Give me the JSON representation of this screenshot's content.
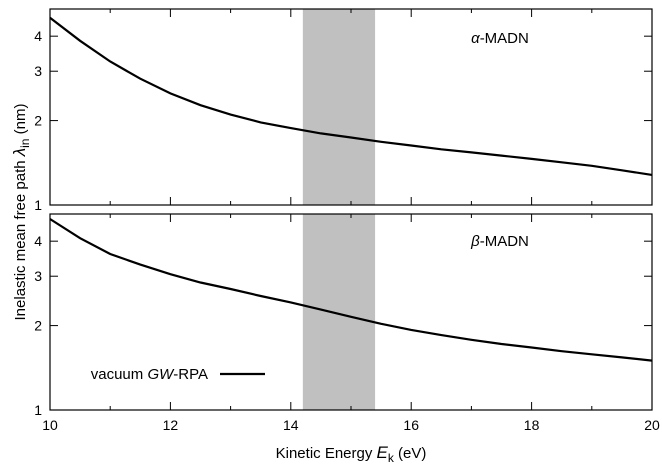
{
  "chart_data": {
    "type": "line",
    "xlabel": "Kinetic Energy E_k (eV)",
    "xlabel_parts": {
      "pre": "Kinetic Energy ",
      "var": "E",
      "sub": "k",
      "post": " (eV)"
    },
    "ylabel": "Inelastic mean free path λ_in (nm)",
    "ylabel_parts": {
      "pre": "Inelastic mean free path ",
      "var": "λ",
      "sub": "in",
      "post": " (nm)"
    },
    "xlim": [
      10,
      20
    ],
    "x_ticks": [
      10,
      12,
      14,
      16,
      18,
      20
    ],
    "shaded_band": {
      "x_range": [
        14.2,
        15.4
      ],
      "color": "#c0c0c0"
    },
    "legend": {
      "label_pre": "vacuum ",
      "label_var": "GW",
      "label_post": "-RPA",
      "placement": "bottom-left of lower panel"
    },
    "panels": [
      {
        "label_var": "α",
        "label_text": "-MADN",
        "yscale": "log",
        "ylim": [
          1,
          5
        ],
        "y_ticks": [
          1,
          2,
          3,
          4
        ],
        "series": [
          {
            "x": [
              10,
              10.5,
              11,
              11.5,
              12,
              12.5,
              13,
              13.5,
              14,
              14.5,
              15,
              15.5,
              16,
              16.5,
              17,
              17.5,
              18,
              18.5,
              19,
              19.5,
              20
            ],
            "y": [
              4.65,
              3.85,
              3.25,
              2.82,
              2.5,
              2.27,
              2.1,
              1.97,
              1.88,
              1.8,
              1.74,
              1.68,
              1.63,
              1.58,
              1.54,
              1.5,
              1.46,
              1.42,
              1.38,
              1.33,
              1.28
            ]
          }
        ]
      },
      {
        "label_var": "β",
        "label_text": "-MADN",
        "yscale": "log",
        "ylim": [
          1,
          5
        ],
        "y_ticks": [
          1,
          2,
          3,
          4
        ],
        "series": [
          {
            "x": [
              10,
              10.5,
              11,
              11.5,
              12,
              12.5,
              13,
              13.5,
              14,
              14.5,
              15,
              15.5,
              16,
              16.5,
              17,
              17.5,
              18,
              18.5,
              19,
              19.5,
              20
            ],
            "y": [
              4.8,
              4.1,
              3.6,
              3.3,
              3.05,
              2.85,
              2.7,
              2.55,
              2.42,
              2.28,
              2.15,
              2.03,
              1.93,
              1.85,
              1.78,
              1.72,
              1.67,
              1.62,
              1.58,
              1.54,
              1.5
            ]
          }
        ]
      }
    ]
  }
}
